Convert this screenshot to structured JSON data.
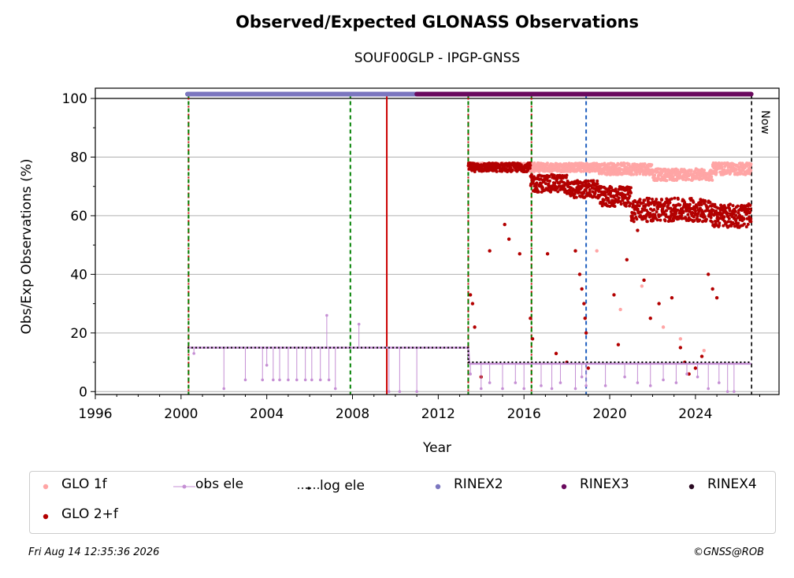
{
  "chart_data": {
    "type": "scatter",
    "title": "Observed/Expected GLONASS Observations",
    "subtitle": "SOUF00GLP - IPGP-GNSS",
    "xlabel": "Year",
    "ylabel": "Obs/Exp Observations (%)",
    "xlim": [
      1996,
      2027.9
    ],
    "ylim": [
      -1,
      103.5
    ],
    "xticks": [
      1996,
      2000,
      2004,
      2008,
      2012,
      2016,
      2020,
      2024
    ],
    "yticks": [
      0,
      20,
      40,
      60,
      80,
      100
    ],
    "grid": "horizontal",
    "now_label": "Now",
    "now_x": 2026.62,
    "vertical_markers": [
      {
        "x": 2000.35,
        "color": "#cc0000",
        "style": "dotted"
      },
      {
        "x": 2000.35,
        "color": "#008000",
        "style": "dashed"
      },
      {
        "x": 2007.9,
        "color": "#008000",
        "style": "dashed"
      },
      {
        "x": 2009.6,
        "color": "#cc0000",
        "style": "solid"
      },
      {
        "x": 2013.4,
        "color": "#cc0000",
        "style": "dotted"
      },
      {
        "x": 2013.4,
        "color": "#008000",
        "style": "dashed"
      },
      {
        "x": 2016.35,
        "color": "#cc0000",
        "style": "dotted"
      },
      {
        "x": 2016.35,
        "color": "#008000",
        "style": "dashed"
      },
      {
        "x": 2018.9,
        "color": "#1f5fbf",
        "style": "dashed"
      }
    ],
    "series": [
      {
        "name": "GLO 1f",
        "color": "#ffa5a5",
        "kind": "points",
        "segments": [
          {
            "x0": 2013.4,
            "x1": 2016.3,
            "y": [
              76,
              78
            ]
          },
          {
            "x0": 2016.3,
            "x1": 2019.5,
            "y": [
              75,
              78
            ]
          },
          {
            "x0": 2019.5,
            "x1": 2022.0,
            "y": [
              74,
              78
            ]
          },
          {
            "x0": 2022.0,
            "x1": 2024.8,
            "y": [
              72,
              76
            ]
          },
          {
            "x0": 2024.8,
            "x1": 2026.6,
            "y": [
              74,
              78
            ]
          }
        ],
        "outliers": [
          [
            2019.4,
            48
          ],
          [
            2020.5,
            28
          ],
          [
            2021.5,
            36
          ],
          [
            2022.5,
            22
          ],
          [
            2023.3,
            18
          ],
          [
            2024.4,
            14
          ]
        ]
      },
      {
        "name": "GLO 2+f",
        "color": "#b30000",
        "kind": "points",
        "segments": [
          {
            "x0": 2013.4,
            "x1": 2016.3,
            "y": [
              75,
              78
            ]
          },
          {
            "x0": 2016.3,
            "x1": 2018.0,
            "y": [
              68,
              74
            ]
          },
          {
            "x0": 2018.0,
            "x1": 2019.5,
            "y": [
              66,
              72
            ]
          },
          {
            "x0": 2019.5,
            "x1": 2021.0,
            "y": [
              63,
              70
            ]
          },
          {
            "x0": 2021.0,
            "x1": 2024.7,
            "y": [
              58,
              66
            ]
          },
          {
            "x0": 2024.7,
            "x1": 2026.6,
            "y": [
              56,
              64
            ]
          }
        ],
        "outliers": [
          [
            2013.5,
            33
          ],
          [
            2013.6,
            30
          ],
          [
            2013.7,
            22
          ],
          [
            2014.0,
            5
          ],
          [
            2014.4,
            48
          ],
          [
            2015.1,
            57
          ],
          [
            2015.3,
            52
          ],
          [
            2015.8,
            47
          ],
          [
            2016.3,
            25
          ],
          [
            2016.4,
            18
          ],
          [
            2017.1,
            47
          ],
          [
            2017.5,
            13
          ],
          [
            2018.0,
            10
          ],
          [
            2018.4,
            48
          ],
          [
            2018.6,
            40
          ],
          [
            2018.7,
            35
          ],
          [
            2018.8,
            30
          ],
          [
            2018.85,
            25
          ],
          [
            2018.9,
            20
          ],
          [
            2019.0,
            8
          ],
          [
            2020.2,
            33
          ],
          [
            2020.4,
            16
          ],
          [
            2020.8,
            45
          ],
          [
            2021.3,
            55
          ],
          [
            2021.6,
            38
          ],
          [
            2021.9,
            25
          ],
          [
            2022.3,
            30
          ],
          [
            2022.9,
            32
          ],
          [
            2023.3,
            15
          ],
          [
            2023.5,
            10
          ],
          [
            2023.7,
            6
          ],
          [
            2024.0,
            8
          ],
          [
            2024.3,
            12
          ],
          [
            2024.6,
            40
          ],
          [
            2024.8,
            35
          ],
          [
            2025.0,
            32
          ]
        ]
      },
      {
        "name": "obs ele",
        "color": "#c58fd4",
        "kind": "line-points",
        "steps": [
          [
            2000.3,
            15
          ],
          [
            2013.4,
            15
          ],
          [
            2013.45,
            9.5
          ],
          [
            2026.6,
            9.5
          ]
        ],
        "drops": [
          [
            2000.6,
            13
          ],
          [
            2002.0,
            1
          ],
          [
            2003.0,
            4
          ],
          [
            2003.8,
            4
          ],
          [
            2004.0,
            9
          ],
          [
            2004.3,
            4
          ],
          [
            2004.6,
            4
          ],
          [
            2005.0,
            4
          ],
          [
            2005.4,
            4
          ],
          [
            2005.8,
            4
          ],
          [
            2006.1,
            4
          ],
          [
            2006.5,
            4
          ],
          [
            2006.8,
            26
          ],
          [
            2006.9,
            4
          ],
          [
            2007.2,
            1
          ],
          [
            2008.3,
            23
          ],
          [
            2009.7,
            0
          ],
          [
            2010.2,
            0
          ],
          [
            2011.0,
            0
          ],
          [
            2013.5,
            6
          ],
          [
            2014.0,
            1
          ],
          [
            2014.4,
            3
          ],
          [
            2015.0,
            1
          ],
          [
            2015.6,
            3
          ],
          [
            2016.0,
            1
          ],
          [
            2016.8,
            2
          ],
          [
            2017.3,
            1
          ],
          [
            2017.7,
            3
          ],
          [
            2018.4,
            1
          ],
          [
            2018.7,
            5
          ],
          [
            2018.9,
            2
          ],
          [
            2019.8,
            2
          ],
          [
            2020.7,
            5
          ],
          [
            2021.3,
            3
          ],
          [
            2021.9,
            2
          ],
          [
            2022.5,
            4
          ],
          [
            2023.1,
            3
          ],
          [
            2023.6,
            6
          ],
          [
            2024.1,
            5
          ],
          [
            2024.6,
            1
          ],
          [
            2025.1,
            3
          ],
          [
            2025.5,
            0
          ],
          [
            2025.8,
            0
          ]
        ]
      },
      {
        "name": "log ele",
        "color": "#000000",
        "kind": "dotted-line",
        "steps": [
          [
            2000.3,
            15
          ],
          [
            2013.4,
            15
          ],
          [
            2013.4,
            10
          ],
          [
            2026.6,
            10
          ]
        ]
      },
      {
        "name": "RINEX2",
        "color": "#7b76bf",
        "kind": "band",
        "y": 101.5,
        "ranges": [
          [
            2000.3,
            2011.0
          ]
        ]
      },
      {
        "name": "RINEX3",
        "color": "#6a0a5e",
        "kind": "band",
        "y": 101.5,
        "ranges": [
          [
            2011.0,
            2026.6
          ]
        ]
      },
      {
        "name": "RINEX4",
        "color": "#2a0a22",
        "kind": "band",
        "y": 101.5,
        "ranges": []
      }
    ]
  },
  "legend": {
    "items": [
      {
        "label": "GLO 1f",
        "color": "#ffa5a5",
        "kind": "point"
      },
      {
        "label": "obs ele",
        "color": "#c58fd4",
        "kind": "line-point"
      },
      {
        "label": "log ele",
        "color": "#000000",
        "kind": "dotted-line"
      },
      {
        "label": "RINEX2",
        "color": "#7b76bf",
        "kind": "point"
      },
      {
        "label": "RINEX3",
        "color": "#6a0a5e",
        "kind": "point"
      },
      {
        "label": "RINEX4",
        "color": "#2a0a22",
        "kind": "point"
      },
      {
        "label": "GLO 2+f",
        "color": "#b30000",
        "kind": "point"
      }
    ]
  },
  "footer": {
    "timestamp": "Fri Aug 14 12:35:36 2026",
    "credit": "©GNSS@ROB"
  }
}
